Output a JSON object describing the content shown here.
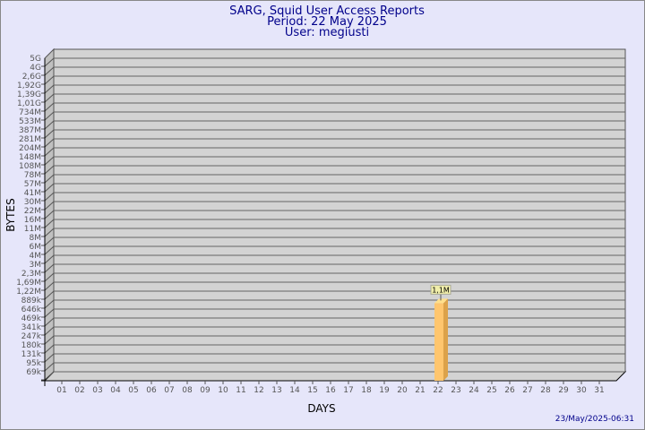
{
  "chart_data": {
    "type": "bar",
    "title": [
      "SARG, Squid User Access Reports",
      "Period: 22 May 2025",
      "User: megiusti"
    ],
    "xlabel": "DAYS",
    "ylabel": "BYTES",
    "categories": [
      "01",
      "02",
      "03",
      "04",
      "05",
      "06",
      "07",
      "08",
      "09",
      "10",
      "11",
      "12",
      "13",
      "14",
      "15",
      "16",
      "17",
      "18",
      "19",
      "20",
      "21",
      "22",
      "23",
      "24",
      "25",
      "26",
      "27",
      "28",
      "29",
      "30",
      "31"
    ],
    "values": [
      null,
      null,
      null,
      null,
      null,
      null,
      null,
      null,
      null,
      null,
      null,
      null,
      null,
      null,
      null,
      null,
      null,
      null,
      null,
      null,
      null,
      1100000,
      null,
      null,
      null,
      null,
      null,
      null,
      null,
      null,
      null
    ],
    "data_labels": {
      "22": "1,1M"
    },
    "yticks": [
      "5G",
      "4G",
      "2,6G",
      "1,92G",
      "1,39G",
      "1,01G",
      "734M",
      "533M",
      "387M",
      "281M",
      "204M",
      "148M",
      "108M",
      "78M",
      "57M",
      "41M",
      "30M",
      "22M",
      "16M",
      "11M",
      "8M",
      "6M",
      "4M",
      "3M",
      "2,3M",
      "1,69M",
      "1,22M",
      "889k",
      "646k",
      "469k",
      "341k",
      "247k",
      "180k",
      "131k",
      "95k",
      "69k"
    ],
    "yscale": "log",
    "grid": true,
    "colors": {
      "bar": "#ffc66e",
      "bar_side": "#dca24a",
      "bar_top": "#ffe08c",
      "wall": "#d3d3d3",
      "background": "#e6e6fa",
      "title": "#00008b"
    }
  },
  "footer": {
    "timestamp": "23/May/2025-06:31"
  }
}
